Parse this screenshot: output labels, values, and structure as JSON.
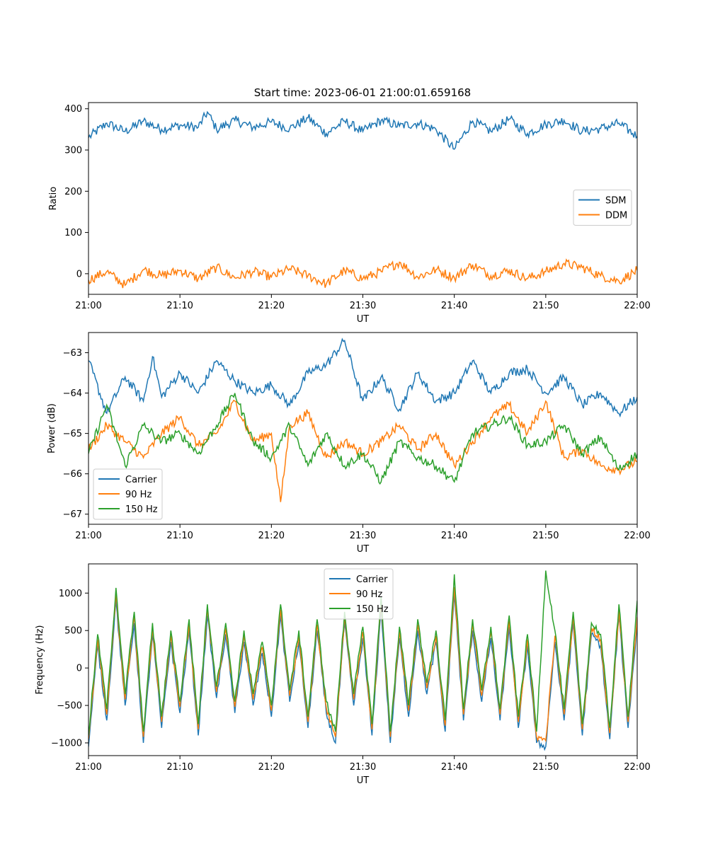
{
  "figure": {
    "title": "Start time: 2023-06-01 21:00:01.659168"
  },
  "chart_data": [
    {
      "type": "line",
      "title": "Start time: 2023-06-01 21:00:01.659168",
      "xlabel": "UT",
      "ylabel": "Ratio",
      "x_ticks": [
        "21:00",
        "21:10",
        "21:20",
        "21:30",
        "21:40",
        "21:50",
        "22:00"
      ],
      "xlim": [
        "21:00",
        "22:00"
      ],
      "y_ticks": [
        0,
        100,
        200,
        300,
        400
      ],
      "ylim": [
        -50,
        415
      ],
      "legend_position": "center-right",
      "grid": false,
      "series": [
        {
          "name": "SDM",
          "color": "#1f77b4",
          "x": [
            "21:00",
            "21:02",
            "21:04",
            "21:06",
            "21:08",
            "21:10",
            "21:12",
            "21:13",
            "21:14",
            "21:16",
            "21:18",
            "21:20",
            "21:22",
            "21:24",
            "21:26",
            "21:28",
            "21:30",
            "21:32",
            "21:34",
            "21:36",
            "21:38",
            "21:40",
            "21:42",
            "21:44",
            "21:46",
            "21:48",
            "21:50",
            "21:52",
            "21:54",
            "21:56",
            "21:58",
            "22:00"
          ],
          "values": [
            330,
            365,
            345,
            370,
            350,
            360,
            355,
            392,
            350,
            372,
            355,
            368,
            352,
            378,
            340,
            370,
            345,
            372,
            358,
            365,
            350,
            302,
            370,
            345,
            375,
            340,
            362,
            372,
            345,
            352,
            365,
            333
          ]
        },
        {
          "name": "DDM",
          "color": "#ff7f0e",
          "x": [
            "21:00",
            "21:02",
            "21:04",
            "21:06",
            "21:08",
            "21:10",
            "21:12",
            "21:14",
            "21:16",
            "21:18",
            "21:20",
            "21:22",
            "21:24",
            "21:26",
            "21:28",
            "21:30",
            "21:32",
            "21:34",
            "21:36",
            "21:38",
            "21:40",
            "21:42",
            "21:44",
            "21:46",
            "21:48",
            "21:50",
            "21:52",
            "21:54",
            "21:56",
            "21:58",
            "22:00"
          ],
          "values": [
            -15,
            5,
            -28,
            10,
            -5,
            8,
            -12,
            15,
            -10,
            5,
            -8,
            12,
            -5,
            -25,
            8,
            -12,
            5,
            28,
            -8,
            10,
            -10,
            22,
            -5,
            8,
            -12,
            5,
            25,
            15,
            -5,
            -18,
            8
          ]
        }
      ]
    },
    {
      "type": "line",
      "xlabel": "UT",
      "ylabel": "Power (dB)",
      "x_ticks": [
        "21:00",
        "21:10",
        "21:20",
        "21:30",
        "21:40",
        "21:50",
        "22:00"
      ],
      "xlim": [
        "21:00",
        "22:00"
      ],
      "y_ticks": [
        -67,
        -66,
        -65,
        -64,
        -63
      ],
      "ylim": [
        -67.25,
        -62.5
      ],
      "legend_position": "lower-left",
      "grid": false,
      "series": [
        {
          "name": "Carrier",
          "color": "#1f77b4",
          "x": [
            "21:00",
            "21:02",
            "21:04",
            "21:06",
            "21:07",
            "21:08",
            "21:10",
            "21:12",
            "21:14",
            "21:16",
            "21:18",
            "21:20",
            "21:22",
            "21:24",
            "21:26",
            "21:28",
            "21:30",
            "21:32",
            "21:34",
            "21:36",
            "21:38",
            "21:40",
            "21:42",
            "21:44",
            "21:46",
            "21:48",
            "21:50",
            "21:52",
            "21:54",
            "21:56",
            "21:58",
            "22:00"
          ],
          "values": [
            -63.2,
            -64.5,
            -63.6,
            -64.2,
            -63.1,
            -64.1,
            -63.5,
            -64.0,
            -63.2,
            -63.7,
            -64.0,
            -63.8,
            -64.3,
            -63.5,
            -63.3,
            -62.7,
            -64.2,
            -63.6,
            -64.4,
            -63.5,
            -64.2,
            -64.0,
            -63.2,
            -64.0,
            -63.5,
            -63.4,
            -64.0,
            -63.6,
            -64.3,
            -64.0,
            -64.5,
            -64.1
          ]
        },
        {
          "name": "90 Hz",
          "color": "#ff7f0e",
          "x": [
            "21:00",
            "21:02",
            "21:04",
            "21:06",
            "21:08",
            "21:10",
            "21:12",
            "21:14",
            "21:16",
            "21:18",
            "21:20",
            "21:21",
            "21:22",
            "21:24",
            "21:26",
            "21:28",
            "21:30",
            "21:32",
            "21:34",
            "21:36",
            "21:38",
            "21:40",
            "21:42",
            "21:44",
            "21:46",
            "21:48",
            "21:50",
            "21:52",
            "21:54",
            "21:56",
            "21:58",
            "22:00"
          ],
          "values": [
            -65.4,
            -64.8,
            -65.2,
            -65.6,
            -65.0,
            -64.6,
            -65.3,
            -65.0,
            -64.2,
            -65.2,
            -65.0,
            -66.7,
            -64.8,
            -64.5,
            -65.6,
            -65.2,
            -65.5,
            -65.2,
            -64.8,
            -65.4,
            -65.0,
            -65.8,
            -65.2,
            -64.6,
            -64.3,
            -65.0,
            -64.2,
            -65.6,
            -65.4,
            -65.8,
            -65.9,
            -65.7
          ]
        },
        {
          "name": "150 Hz",
          "color": "#2ca02c",
          "x": [
            "21:00",
            "21:02",
            "21:04",
            "21:06",
            "21:08",
            "21:10",
            "21:12",
            "21:14",
            "21:16",
            "21:18",
            "21:20",
            "21:22",
            "21:24",
            "21:26",
            "21:28",
            "21:30",
            "21:32",
            "21:34",
            "21:36",
            "21:38",
            "21:40",
            "21:42",
            "21:44",
            "21:46",
            "21:48",
            "21:50",
            "21:52",
            "21:54",
            "21:56",
            "21:58",
            "22:00"
          ],
          "values": [
            -65.5,
            -64.3,
            -65.8,
            -64.8,
            -65.2,
            -65.0,
            -65.5,
            -64.8,
            -64.0,
            -65.2,
            -65.6,
            -64.8,
            -65.8,
            -65.0,
            -65.8,
            -65.5,
            -66.2,
            -65.2,
            -65.6,
            -65.8,
            -66.2,
            -65.0,
            -64.8,
            -64.6,
            -65.3,
            -65.2,
            -64.8,
            -65.5,
            -65.1,
            -65.9,
            -65.5
          ]
        }
      ]
    },
    {
      "type": "line",
      "xlabel": "UT",
      "ylabel": "Frequency (Hz)",
      "x_ticks": [
        "21:00",
        "21:10",
        "21:20",
        "21:30",
        "21:40",
        "21:50",
        "22:00"
      ],
      "xlim": [
        "21:00",
        "22:00"
      ],
      "y_ticks": [
        -1000,
        -500,
        0,
        500,
        1000
      ],
      "ylim": [
        -1170,
        1390
      ],
      "legend_position": "upper-center",
      "grid": false,
      "series": [
        {
          "name": "Carrier",
          "color": "#1f77b4",
          "x": [
            "21:00",
            "21:01",
            "21:02",
            "21:03",
            "21:04",
            "21:05",
            "21:06",
            "21:07",
            "21:08",
            "21:09",
            "21:10",
            "21:11",
            "21:12",
            "21:13",
            "21:14",
            "21:15",
            "21:16",
            "21:17",
            "21:18",
            "21:19",
            "21:20",
            "21:21",
            "21:22",
            "21:23",
            "21:24",
            "21:25",
            "21:26",
            "21:27",
            "21:28",
            "21:29",
            "21:30",
            "21:31",
            "21:32",
            "21:33",
            "21:34",
            "21:35",
            "21:36",
            "21:37",
            "21:38",
            "21:39",
            "21:40",
            "21:41",
            "21:42",
            "21:43",
            "21:44",
            "21:45",
            "21:46",
            "21:47",
            "21:48",
            "21:49",
            "21:50",
            "21:51",
            "21:52",
            "21:53",
            "21:54",
            "21:55",
            "21:56",
            "21:57",
            "21:58",
            "21:59",
            "22:00"
          ],
          "values": [
            -1050,
            300,
            -700,
            900,
            -500,
            600,
            -1000,
            450,
            -800,
            350,
            -600,
            500,
            -900,
            700,
            -400,
            450,
            -600,
            350,
            -500,
            200,
            -650,
            700,
            -450,
            350,
            -800,
            500,
            -600,
            -1000,
            600,
            -500,
            400,
            -900,
            800,
            -1000,
            400,
            -650,
            500,
            -350,
            350,
            -850,
            1000,
            -700,
            500,
            -450,
            400,
            -700,
            550,
            -800,
            300,
            -1000,
            -1050,
            350,
            -700,
            600,
            -900,
            450,
            300,
            -950,
            700,
            -800,
            600
          ]
        },
        {
          "name": "90 Hz",
          "color": "#ff7f0e",
          "x": [
            "21:00",
            "21:01",
            "21:02",
            "21:03",
            "21:04",
            "21:05",
            "21:06",
            "21:07",
            "21:08",
            "21:09",
            "21:10",
            "21:11",
            "21:12",
            "21:13",
            "21:14",
            "21:15",
            "21:16",
            "21:17",
            "21:18",
            "21:19",
            "21:20",
            "21:21",
            "21:22",
            "21:23",
            "21:24",
            "21:25",
            "21:26",
            "21:27",
            "21:28",
            "21:29",
            "21:30",
            "21:31",
            "21:32",
            "21:33",
            "21:34",
            "21:35",
            "21:36",
            "21:37",
            "21:38",
            "21:39",
            "21:40",
            "21:41",
            "21:42",
            "21:43",
            "21:44",
            "21:45",
            "21:46",
            "21:47",
            "21:48",
            "21:49",
            "21:50",
            "21:51",
            "21:52",
            "21:53",
            "21:54",
            "21:55",
            "21:56",
            "21:57",
            "21:58",
            "21:59",
            "22:00"
          ],
          "values": [
            -950,
            380,
            -620,
            980,
            -420,
            680,
            -920,
            530,
            -720,
            430,
            -520,
            580,
            -820,
            780,
            -320,
            530,
            -520,
            430,
            -420,
            280,
            -570,
            780,
            -370,
            430,
            -720,
            580,
            -520,
            -920,
            680,
            -420,
            480,
            -820,
            880,
            -920,
            480,
            -570,
            580,
            -270,
            430,
            -770,
            1080,
            -620,
            580,
            -370,
            480,
            -620,
            630,
            -720,
            380,
            -920,
            -970,
            430,
            -620,
            680,
            -820,
            530,
            380,
            -870,
            780,
            -720,
            680
          ]
        },
        {
          "name": "150 Hz",
          "color": "#2ca02c",
          "x": [
            "21:00",
            "21:01",
            "21:02",
            "21:03",
            "21:04",
            "21:05",
            "21:06",
            "21:07",
            "21:08",
            "21:09",
            "21:10",
            "21:11",
            "21:12",
            "21:13",
            "21:14",
            "21:15",
            "21:16",
            "21:17",
            "21:18",
            "21:19",
            "21:20",
            "21:21",
            "21:22",
            "21:23",
            "21:24",
            "21:25",
            "21:26",
            "21:27",
            "21:28",
            "21:29",
            "21:30",
            "21:31",
            "21:32",
            "21:33",
            "21:34",
            "21:35",
            "21:36",
            "21:37",
            "21:38",
            "21:39",
            "21:40",
            "21:41",
            "21:42",
            "21:43",
            "21:44",
            "21:45",
            "21:46",
            "21:47",
            "21:48",
            "21:49",
            "21:50",
            "21:51",
            "21:52",
            "21:53",
            "21:54",
            "21:55",
            "21:56",
            "21:57",
            "21:58",
            "21:59",
            "22:00"
          ],
          "values": [
            -900,
            450,
            -550,
            1070,
            -350,
            750,
            -850,
            600,
            -650,
            500,
            -450,
            650,
            -750,
            850,
            -250,
            600,
            -450,
            500,
            -350,
            350,
            -500,
            850,
            -300,
            500,
            -650,
            650,
            -450,
            -850,
            750,
            -350,
            550,
            -750,
            950,
            -850,
            550,
            -500,
            650,
            -200,
            500,
            -700,
            1250,
            -550,
            650,
            -300,
            550,
            -550,
            700,
            -650,
            450,
            -850,
            1300,
            500,
            -550,
            750,
            -750,
            600,
            450,
            -800,
            850,
            -650,
            900
          ]
        }
      ]
    }
  ]
}
